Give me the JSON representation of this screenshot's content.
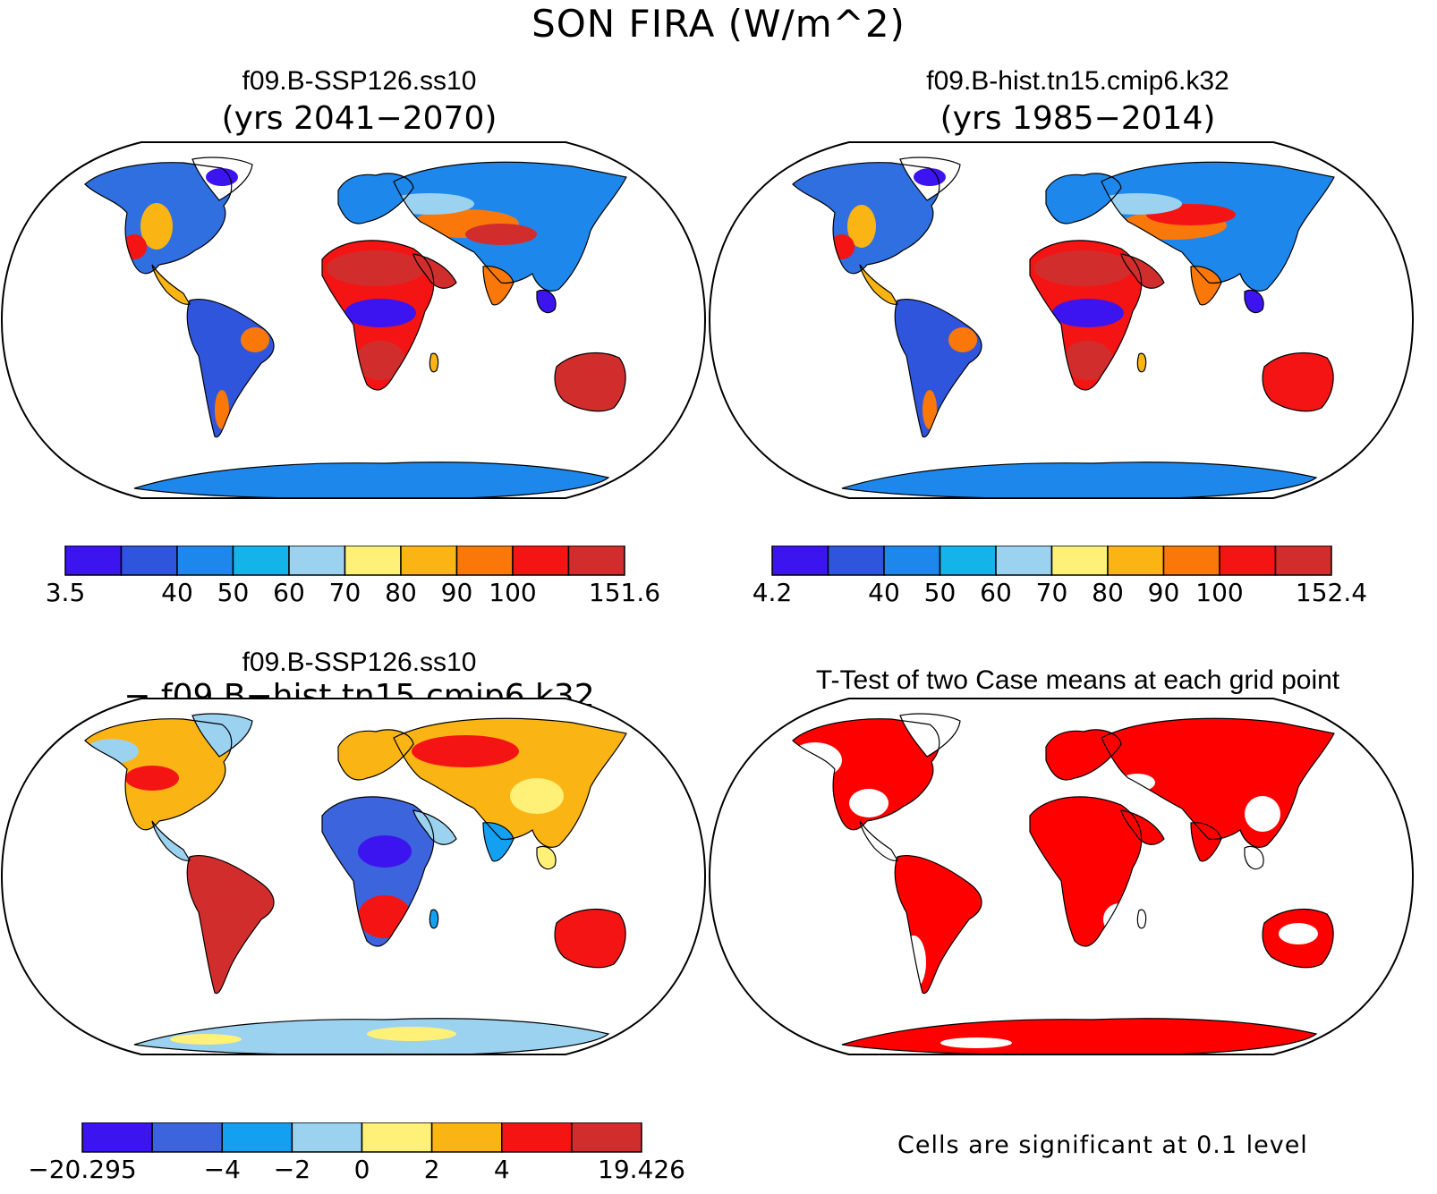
{
  "title": "SON FIRA (W/m^2)",
  "panels": [
    {
      "title": "f09.B-SSP126.ss10",
      "subtitle": "(yrs 2041−2070)",
      "map_style": "abs_future",
      "colorbar": {
        "colors": [
          "#3c14f0",
          "#2f55dc",
          "#1e87eb",
          "#14b4eb",
          "#9bd2f0",
          "#fff078",
          "#fab414",
          "#fa780a",
          "#f51414",
          "#d22d2d"
        ],
        "labels": [
          "3.5",
          "",
          "40",
          "50",
          "60",
          "70",
          "80",
          "90",
          "100",
          "",
          "151.6"
        ]
      }
    },
    {
      "title": "f09.B-hist.tn15.cmip6.k32",
      "subtitle": "(yrs 1985−2014)",
      "map_style": "abs_hist",
      "colorbar": {
        "colors": [
          "#3c14f0",
          "#2f55dc",
          "#1e87eb",
          "#14b4eb",
          "#9bd2f0",
          "#fff078",
          "#fab414",
          "#fa780a",
          "#f51414",
          "#d22d2d"
        ],
        "labels": [
          "4.2",
          "",
          "40",
          "50",
          "60",
          "70",
          "80",
          "90",
          "100",
          "",
          "152.4"
        ]
      }
    },
    {
      "title": "f09.B-SSP126.ss10",
      "subtitle": "− f09.B−hist.tn15.cmip6.k32",
      "map_style": "diff",
      "colorbar": {
        "colors": [
          "#3c14f0",
          "#3c64dc",
          "#14a0f0",
          "#9bd2f0",
          "#fff078",
          "#fab414",
          "#f51414",
          "#d22d2d"
        ],
        "labels": [
          "−20.295",
          "",
          "−4",
          "−2",
          "0",
          "2",
          "4",
          "",
          "19.426"
        ]
      }
    },
    {
      "title": "T-Test of two Case means at each grid point",
      "subtitle": "",
      "map_style": "ttest",
      "note": "Cells are significant at 0.1 level"
    }
  ]
}
